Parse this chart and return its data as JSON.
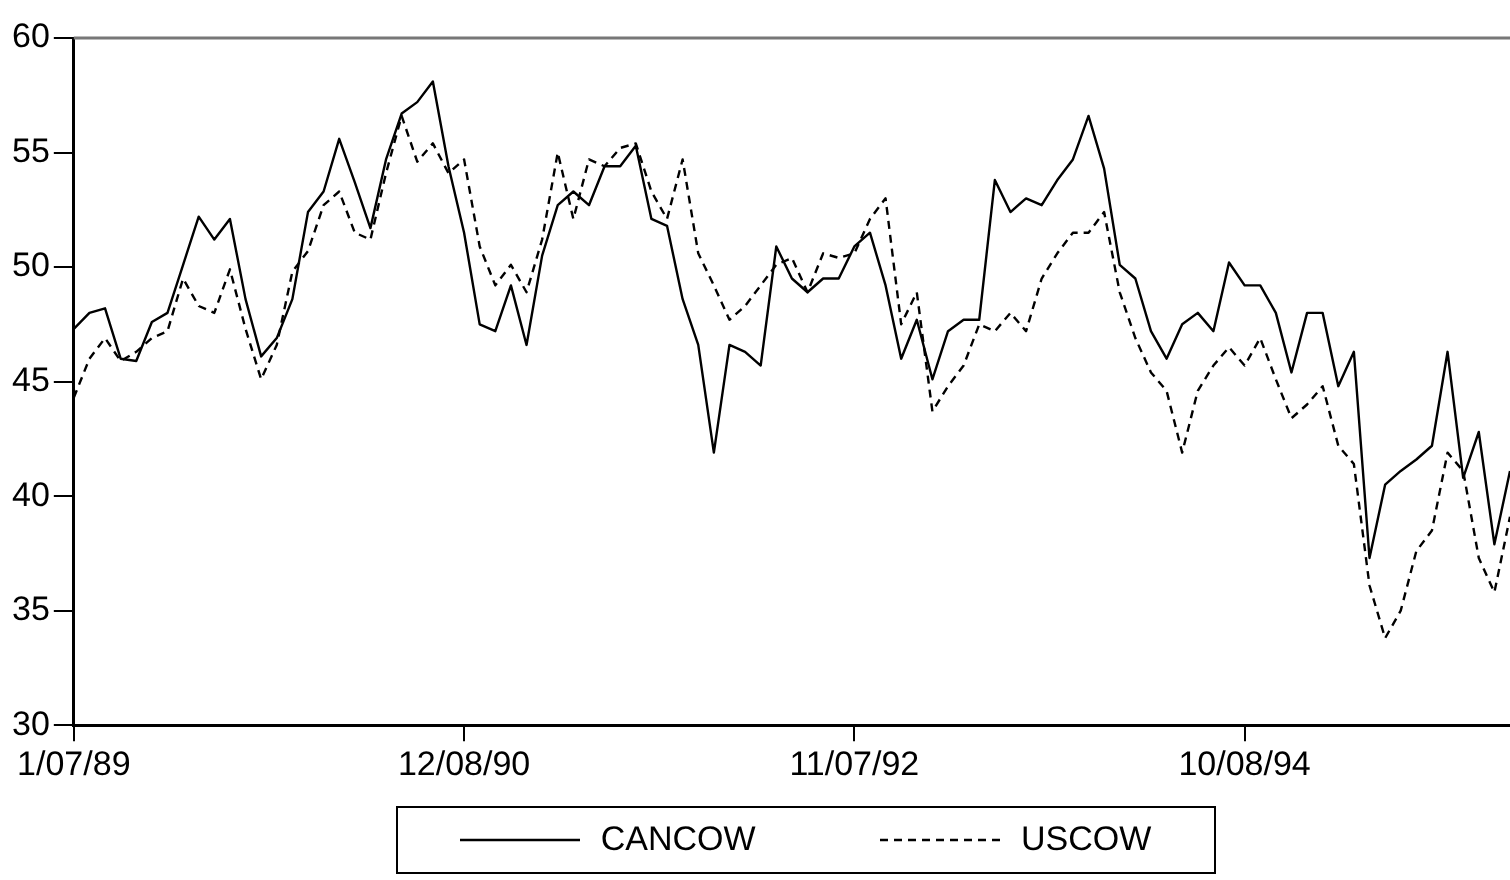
{
  "chart_data": {
    "type": "line",
    "x": [
      "1989-01-07",
      "1989-02-04",
      "1989-03-04",
      "1989-04-01",
      "1989-04-29",
      "1989-05-27",
      "1989-06-24",
      "1989-07-22",
      "1989-08-19",
      "1989-09-16",
      "1989-10-14",
      "1989-11-11",
      "1989-12-09",
      "1990-01-06",
      "1990-02-03",
      "1990-03-03",
      "1990-03-31",
      "1990-04-28",
      "1990-05-26",
      "1990-06-23",
      "1990-07-21",
      "1990-08-18",
      "1990-09-15",
      "1990-10-13",
      "1990-11-10",
      "1990-12-08",
      "1991-01-05",
      "1991-02-02",
      "1991-03-02",
      "1991-03-30",
      "1991-04-27",
      "1991-05-25",
      "1991-06-22",
      "1991-07-20",
      "1991-08-17",
      "1991-09-14",
      "1991-10-12",
      "1991-11-09",
      "1991-12-07",
      "1992-01-04",
      "1992-02-01",
      "1992-02-29",
      "1992-03-28",
      "1992-04-25",
      "1992-05-23",
      "1992-06-20",
      "1992-07-18",
      "1992-08-15",
      "1992-09-12",
      "1992-10-10",
      "1992-11-07",
      "1992-12-05",
      "1993-01-02",
      "1993-01-30",
      "1993-02-27",
      "1993-03-27",
      "1993-04-24",
      "1993-05-22",
      "1993-06-19",
      "1993-07-17",
      "1993-08-14",
      "1993-09-11",
      "1993-10-09",
      "1993-11-06",
      "1993-12-04",
      "1994-01-01",
      "1994-01-29",
      "1994-02-26",
      "1994-03-26",
      "1994-04-23",
      "1994-05-21",
      "1994-06-18",
      "1994-07-16",
      "1994-08-13",
      "1994-09-10",
      "1994-10-08",
      "1994-11-05",
      "1994-12-03",
      "1994-12-31",
      "1995-01-28",
      "1995-02-25",
      "1995-03-25",
      "1995-04-22",
      "1995-05-20",
      "1995-06-17",
      "1995-07-15",
      "1995-08-12",
      "1995-09-09",
      "1995-10-07",
      "1995-11-04",
      "1995-12-02",
      "1995-12-30",
      "1996-01-27"
    ],
    "series": [
      {
        "name": "CANCOW",
        "color": "#000000",
        "line_style": "solid",
        "values": [
          47.3,
          48.0,
          48.2,
          46.0,
          45.9,
          47.6,
          48.0,
          50.1,
          52.2,
          51.2,
          52.1,
          48.6,
          46.1,
          46.9,
          48.6,
          52.4,
          53.3,
          55.6,
          53.7,
          51.7,
          54.7,
          56.7,
          57.2,
          58.1,
          54.4,
          51.5,
          47.5,
          47.2,
          49.2,
          46.6,
          50.5,
          52.7,
          53.3,
          52.7,
          54.4,
          54.4,
          55.3,
          52.1,
          51.8,
          48.6,
          46.6,
          41.9,
          46.6,
          46.3,
          45.7,
          50.9,
          49.5,
          48.9,
          49.5,
          49.5,
          50.9,
          51.5,
          49.2,
          46.0,
          47.7,
          45.1,
          47.2,
          47.7,
          47.7,
          53.8,
          52.4,
          53.0,
          52.7,
          53.8,
          54.7,
          56.6,
          54.3,
          50.1,
          49.5,
          47.2,
          46.0,
          47.5,
          48.0,
          47.2,
          50.2,
          49.2,
          49.2,
          48.0,
          45.4,
          48.0,
          48.0,
          44.8,
          46.3,
          37.3,
          40.5,
          41.1,
          41.6,
          42.2,
          46.3,
          40.8,
          42.8,
          37.9,
          41.1
        ]
      },
      {
        "name": "USCOW",
        "color": "#000000",
        "line_style": "dashed",
        "values": [
          44.3,
          46.0,
          46.9,
          45.9,
          46.3,
          46.9,
          47.2,
          49.5,
          48.3,
          48.0,
          49.9,
          47.3,
          45.1,
          46.6,
          49.8,
          50.7,
          52.7,
          53.3,
          51.5,
          51.2,
          54.1,
          56.6,
          54.6,
          55.4,
          54.1,
          54.7,
          50.9,
          49.2,
          50.1,
          48.9,
          51.2,
          55.0,
          52.1,
          54.7,
          54.4,
          55.2,
          55.4,
          53.3,
          52.1,
          54.7,
          50.6,
          49.2,
          47.7,
          48.3,
          49.2,
          50.1,
          50.4,
          48.9,
          50.6,
          50.4,
          50.6,
          52.1,
          53.0,
          47.5,
          48.9,
          43.7,
          44.8,
          45.7,
          47.5,
          47.2,
          48.0,
          47.2,
          49.5,
          50.6,
          51.5,
          51.5,
          52.4,
          48.9,
          46.9,
          45.4,
          44.6,
          41.9,
          44.6,
          45.7,
          46.5,
          45.7,
          46.9,
          45.1,
          43.4,
          44.0,
          44.8,
          42.2,
          41.4,
          36.1,
          33.8,
          35.0,
          37.6,
          38.5,
          41.9,
          41.1,
          37.3,
          35.8,
          39.1
        ]
      }
    ],
    "xlim": [
      "1989-01-07",
      "1996-01-27"
    ],
    "xticks": [
      {
        "value": "1989-01-07",
        "label": "1/07/89"
      },
      {
        "value": "1990-12-08",
        "label": "12/08/90"
      },
      {
        "value": "1992-11-07",
        "label": "11/07/92"
      },
      {
        "value": "1994-10-08",
        "label": "10/08/94"
      }
    ],
    "ylim": [
      30,
      60
    ],
    "yticks": [
      30,
      35,
      40,
      45,
      50,
      55,
      60
    ],
    "grid": false,
    "legend": "bottom",
    "marker": "none"
  }
}
